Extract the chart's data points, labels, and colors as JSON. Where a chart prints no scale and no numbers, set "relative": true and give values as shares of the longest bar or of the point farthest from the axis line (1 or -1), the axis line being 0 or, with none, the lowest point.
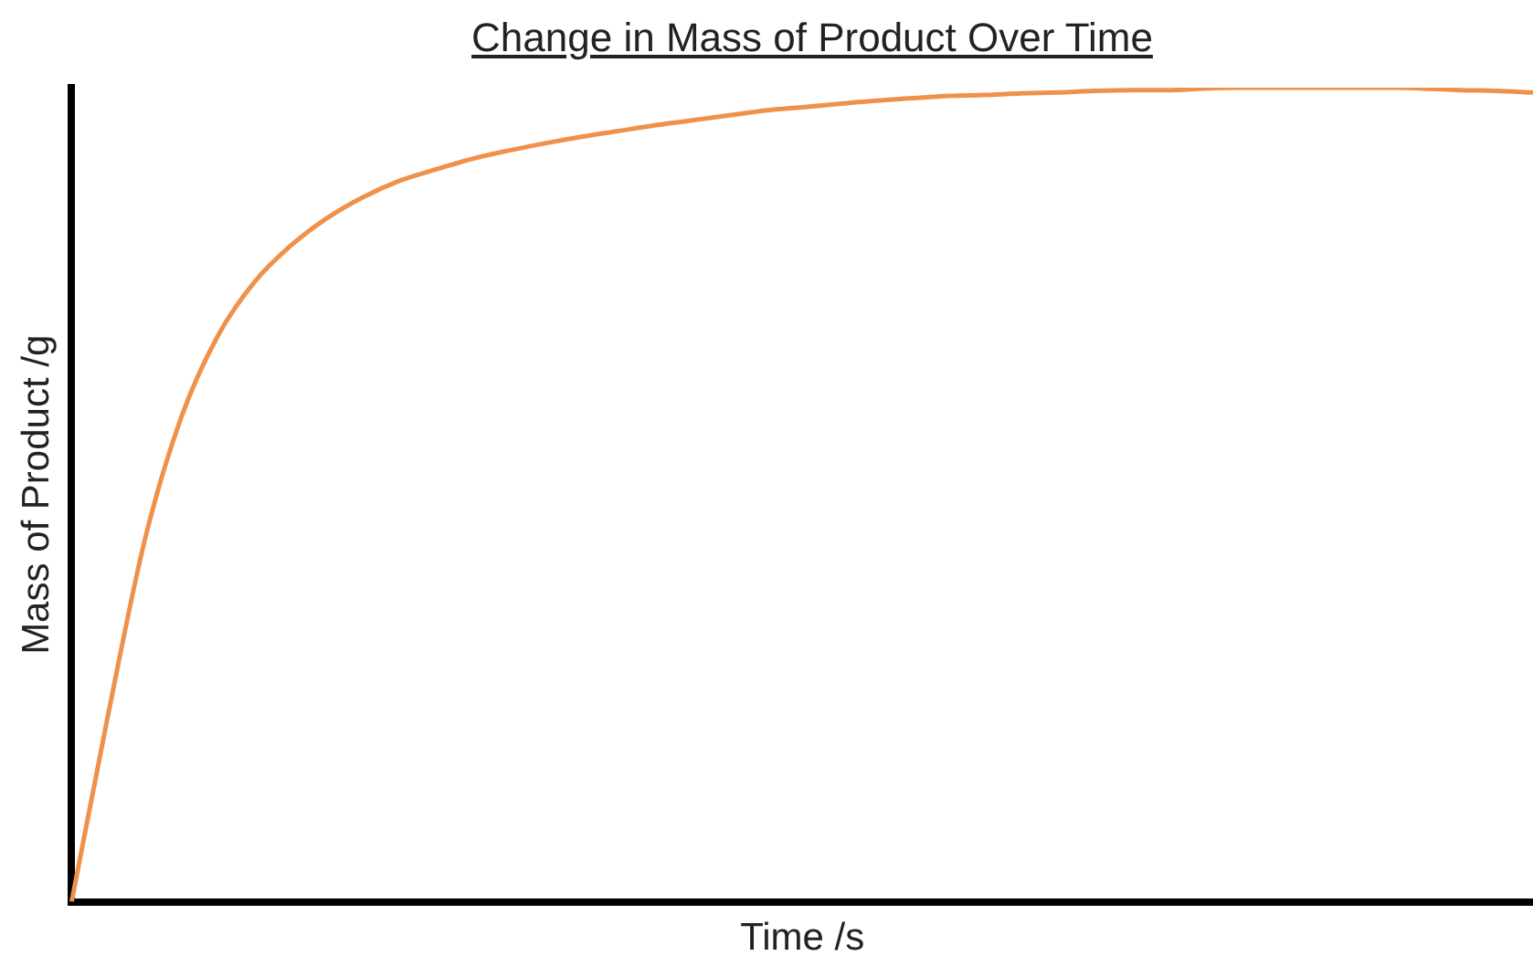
{
  "chart_data": {
    "type": "line",
    "title": "Change in Mass of Product Over Time",
    "xlabel": "Time /s",
    "ylabel": "Mass of Product /g",
    "relative": true,
    "grid": false,
    "legend": false,
    "marker": "none",
    "categories": [
      null,
      null,
      null,
      null,
      null,
      null,
      null,
      null,
      null,
      null,
      null,
      null,
      null,
      null,
      null,
      null,
      null,
      null,
      null,
      null,
      null,
      null,
      null,
      null,
      null,
      null,
      null,
      null,
      null,
      null,
      null,
      null,
      null,
      null,
      null,
      null,
      null,
      null,
      null,
      null,
      null
    ],
    "series": [
      {
        "color": "#f0914a",
        "values": [
          0,
          0.23,
          0.444,
          0.595,
          0.695,
          0.761,
          0.806,
          0.84,
          0.866,
          0.886,
          0.9,
          0.913,
          0.923,
          0.932,
          0.94,
          0.947,
          0.954,
          0.96,
          0.966,
          0.972,
          0.976,
          0.98,
          0.984,
          0.987,
          0.99,
          0.991,
          0.993,
          0.994,
          0.996,
          0.997,
          0.997,
          0.999,
          1,
          1,
          1,
          1,
          1,
          0.999,
          0.997,
          0.996,
          0.994
        ]
      }
    ]
  }
}
